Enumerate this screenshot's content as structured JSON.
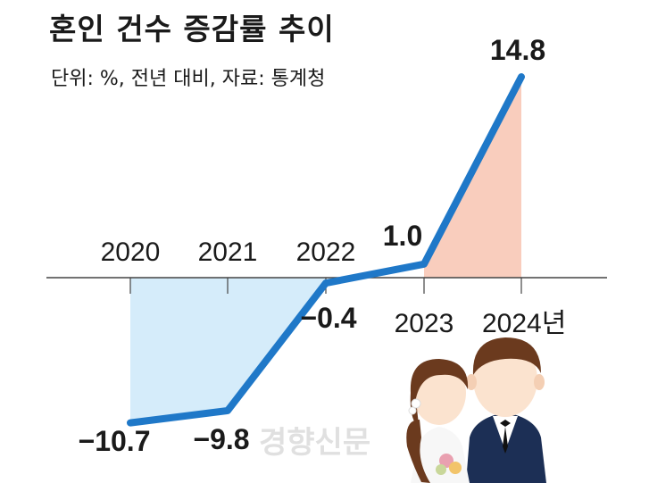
{
  "chart_data": {
    "type": "line",
    "title": "혼인 건수 증감률 추이",
    "subtitle": "단위: %, 전년 대비, 자료: 통계청",
    "categories": [
      "2020",
      "2021",
      "2022",
      "2023",
      "2024년"
    ],
    "series": [
      {
        "values": [
          -10.7,
          -9.8,
          -0.4,
          1.0,
          14.8
        ]
      }
    ],
    "data_labels": [
      "−10.7",
      "−9.8",
      "−0.4",
      "1.0",
      "14.8"
    ],
    "ylim": [
      -12,
      16
    ],
    "grid": false,
    "colors": {
      "line": "#1f78c8",
      "negative_fill": "#d5ecfa",
      "positive_fill": "#f9cdbd",
      "axis": "#444444"
    }
  },
  "watermark": "경향신문"
}
